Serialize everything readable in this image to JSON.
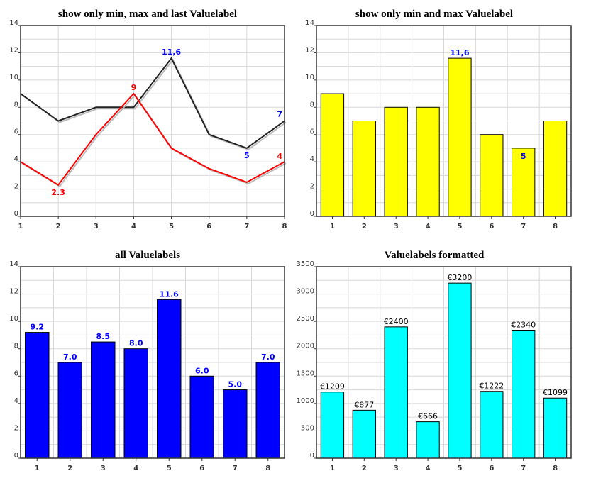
{
  "chart_data": [
    {
      "type": "line",
      "title": "show only min, max and last Valuelabel",
      "x": [
        1,
        2,
        3,
        4,
        5,
        6,
        7,
        8
      ],
      "ylim": [
        0,
        14
      ],
      "yticks": [
        0,
        2,
        4,
        6,
        8,
        10,
        12,
        14
      ],
      "grid": true,
      "series": [
        {
          "color": "#222222",
          "values": [
            9,
            7,
            8,
            8,
            11.6,
            6,
            5,
            7
          ],
          "labels": [
            null,
            null,
            null,
            null,
            "11,6",
            null,
            "5",
            "7"
          ],
          "label_color": "#0000ff"
        },
        {
          "color": "#ff0000",
          "values": [
            4,
            2.3,
            6,
            9,
            5,
            3.5,
            2.5,
            4
          ],
          "labels": [
            null,
            "2.3",
            null,
            "9",
            null,
            null,
            null,
            "4"
          ],
          "label_color": "#ff0000"
        }
      ]
    },
    {
      "type": "bar",
      "title": "show only min and max Valuelabel",
      "categories": [
        "1",
        "2",
        "3",
        "4",
        "5",
        "6",
        "7",
        "8"
      ],
      "ylim": [
        0,
        14
      ],
      "yticks": [
        0,
        2,
        4,
        6,
        8,
        10,
        12,
        14
      ],
      "grid": true,
      "color": "#ffff00",
      "values": [
        9,
        7,
        8,
        8,
        11.6,
        6,
        5,
        7
      ],
      "labels": [
        null,
        null,
        null,
        null,
        "11,6",
        null,
        "5",
        null
      ],
      "label_color": "#0000ff"
    },
    {
      "type": "bar",
      "title": "all Valuelabels",
      "categories": [
        "1",
        "2",
        "3",
        "4",
        "5",
        "6",
        "7",
        "8"
      ],
      "ylim": [
        0,
        14
      ],
      "yticks": [
        0,
        2,
        4,
        6,
        8,
        10,
        12,
        14
      ],
      "grid": true,
      "color": "#0000ff",
      "values": [
        9.2,
        7.0,
        8.5,
        8.0,
        11.6,
        6.0,
        5.0,
        7.0
      ],
      "labels": [
        "9.2",
        "7.0",
        "8.5",
        "8.0",
        "11.6",
        "6.0",
        "5.0",
        "7.0"
      ],
      "label_color": "#0000ff"
    },
    {
      "type": "bar",
      "title": "Valuelabels formatted",
      "categories": [
        "1",
        "2",
        "3",
        "4",
        "5",
        "6",
        "7",
        "8"
      ],
      "ylim": [
        0,
        3500
      ],
      "yticks": [
        0,
        500,
        1000,
        1500,
        2000,
        2500,
        3000,
        3500
      ],
      "grid": true,
      "color": "#00ffff",
      "values": [
        1209,
        877,
        2400,
        666,
        3200,
        1222,
        2340,
        1099
      ],
      "labels": [
        "€1209",
        "€877",
        "€2400",
        "€666",
        "€3200",
        "€1222",
        "€2340",
        "€1099"
      ],
      "label_color": "#000000"
    }
  ]
}
